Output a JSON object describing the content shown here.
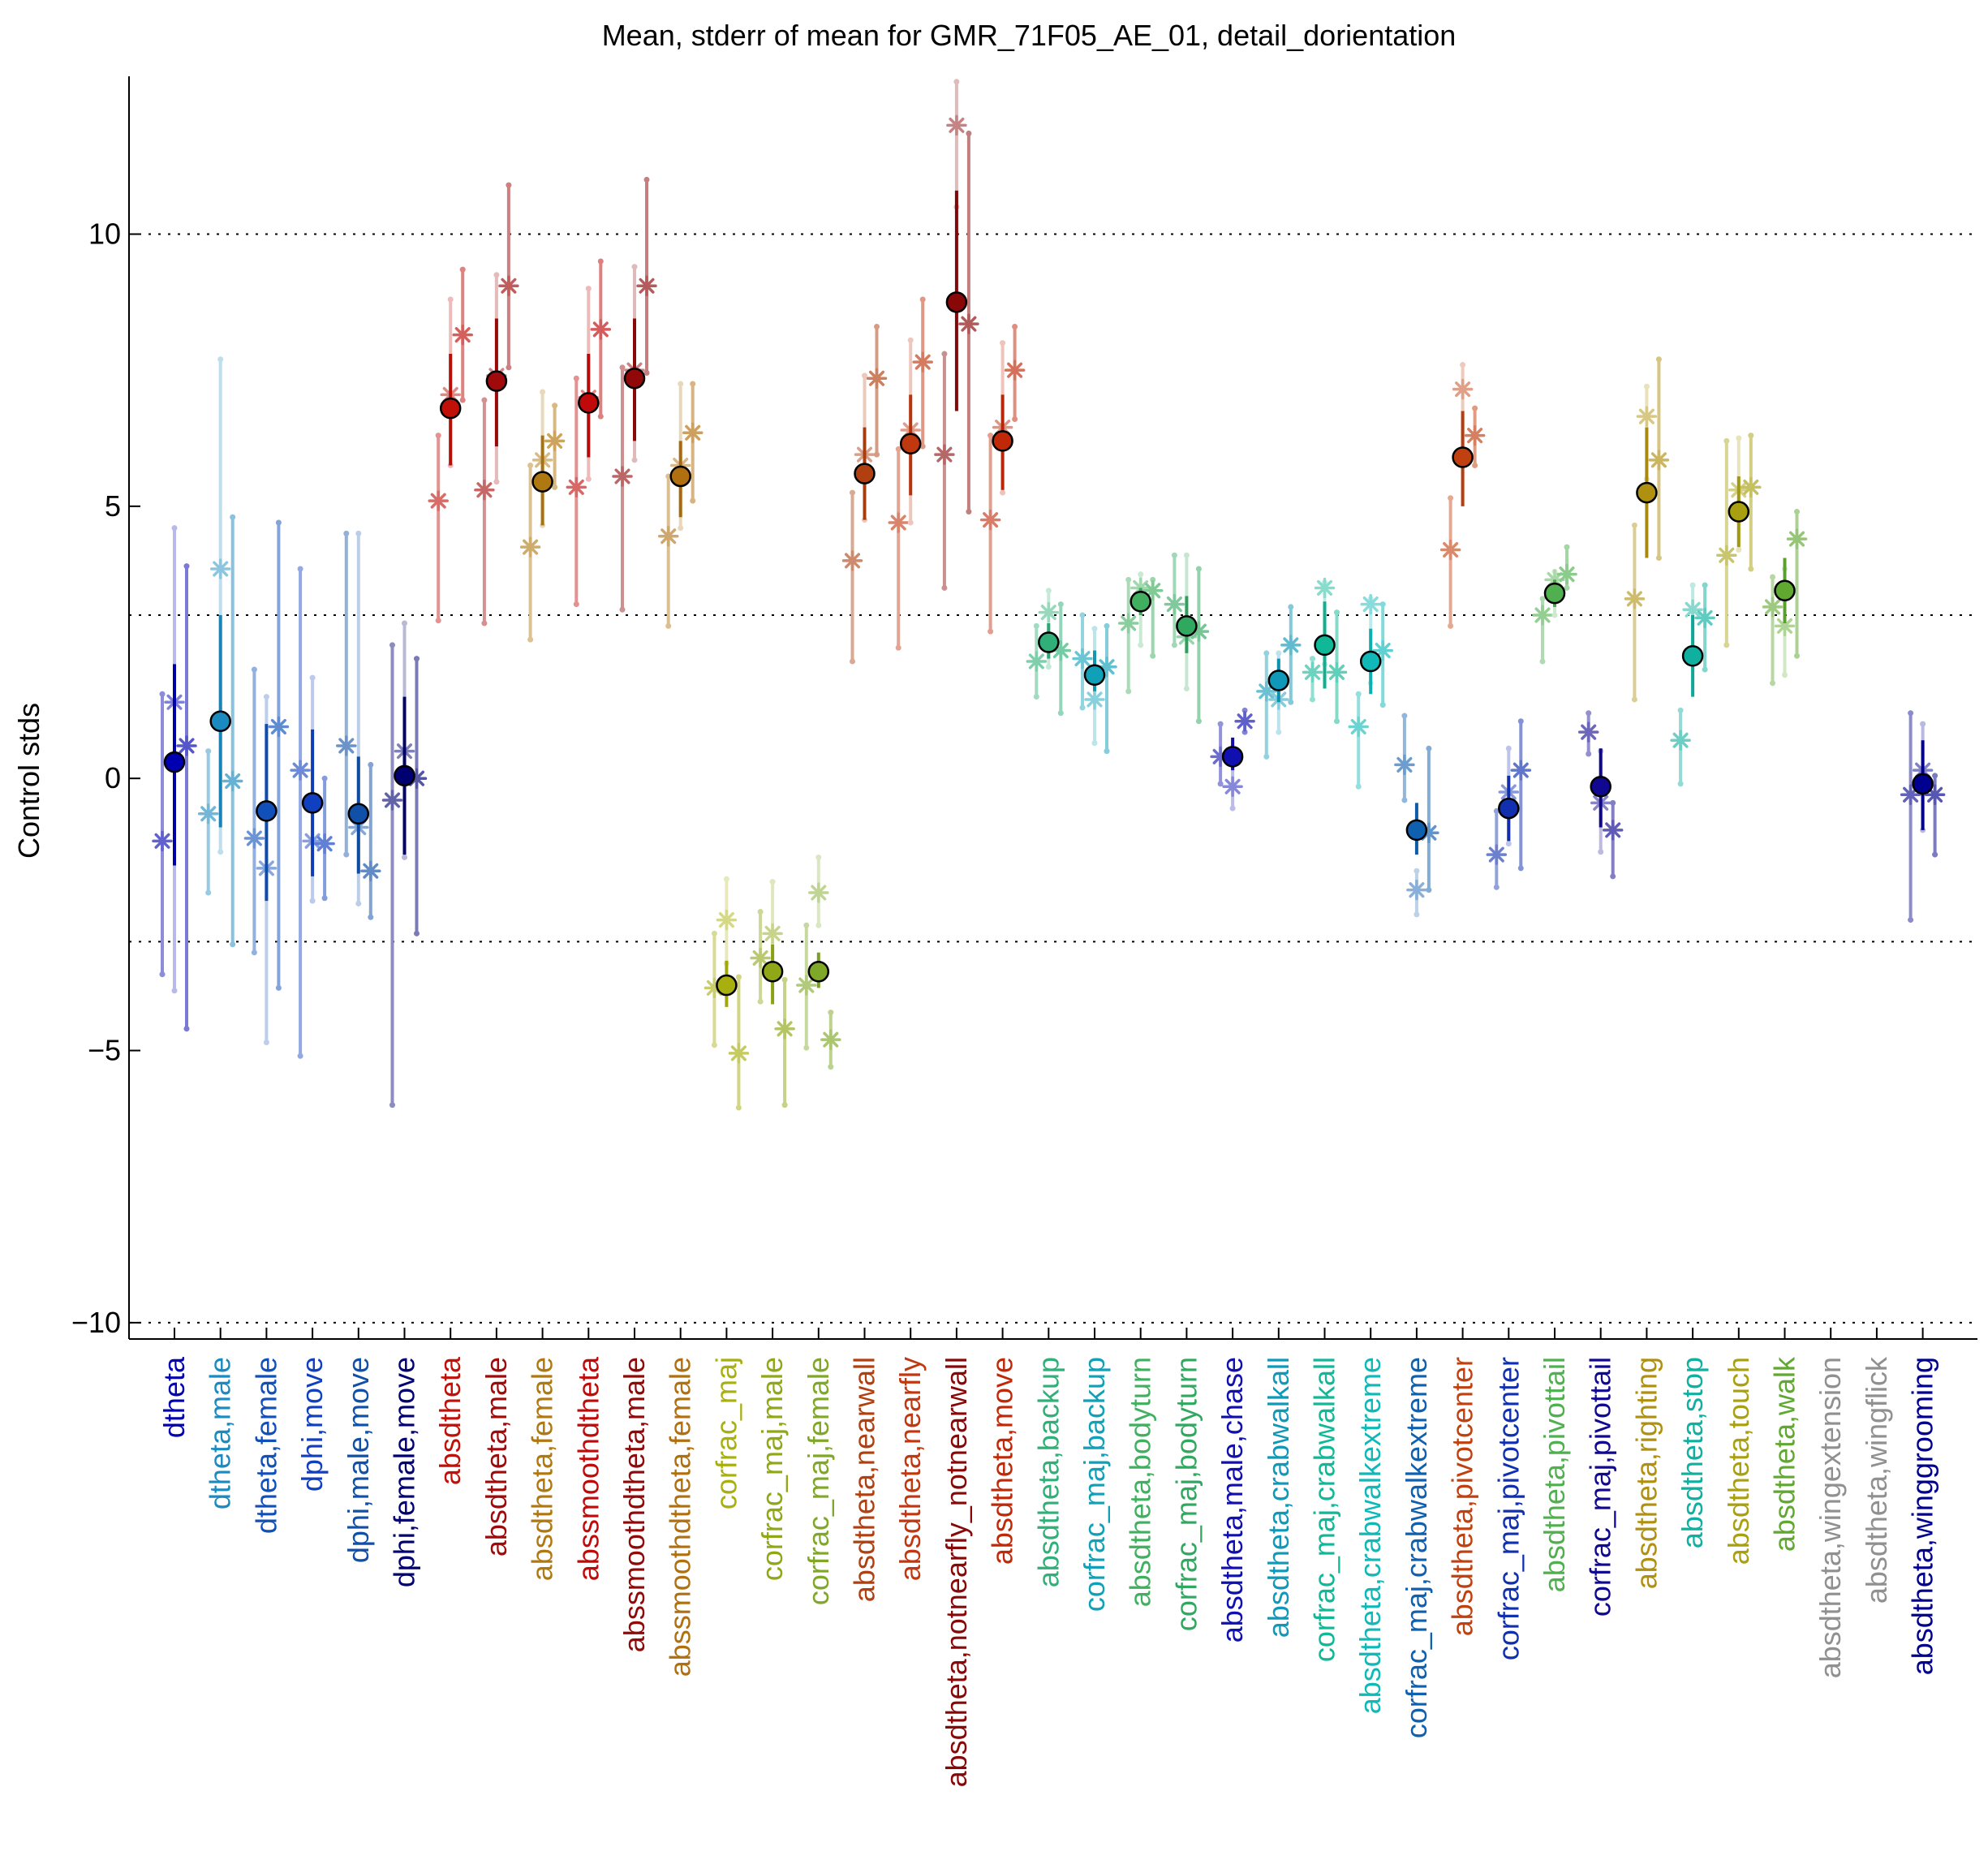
{
  "chart_data": {
    "type": "scatter",
    "title": "Mean, stderr of mean for GMR_71F05_AE_01, detail_dorientation",
    "xlabel": "",
    "ylabel": "Control stds",
    "ylim": [
      -10.3,
      12.9
    ],
    "yticks": [
      -10,
      -5,
      0,
      5,
      10
    ],
    "grid_lines_y": [
      -10,
      -3,
      3,
      10
    ],
    "categories": [
      "dtheta",
      "dtheta,male",
      "dtheta,female",
      "dphi,move",
      "dphi,male,move",
      "dphi,female,move",
      "absdtheta",
      "absdtheta,male",
      "absdtheta,female",
      "abssmoothdtheta",
      "abssmoothdtheta,male",
      "abssmoothdtheta,female",
      "corfrac_maj",
      "corfrac_maj,male",
      "corfrac_maj,female",
      "absdtheta,nearwall",
      "absdtheta,nearfly",
      "absdtheta,notnearfly_notnearwall",
      "absdtheta,move",
      "absdtheta,backup",
      "corfrac_maj,backup",
      "absdtheta,bodyturn",
      "corfrac_maj,bodyturn",
      "absdtheta,male,chase",
      "absdtheta,crabwalkall",
      "corfrac_maj,crabwalkall",
      "absdtheta,crabwalkextreme",
      "corfrac_maj,crabwalkextreme",
      "absdtheta,pivotcenter",
      "corfrac_maj,pivotcenter",
      "absdtheta,pivottail",
      "corfrac_maj,pivottail",
      "absdtheta,righting",
      "absdtheta,stop",
      "absdtheta,touch",
      "absdtheta,walk",
      "absdtheta,wingextension",
      "absdtheta,wingflick",
      "absdtheta,winggrooming"
    ],
    "category_colors": [
      "#0000b0",
      "#1a8ac0",
      "#1050b8",
      "#1040c0",
      "#1050a8",
      "#000070",
      "#c01008",
      "#a00a0a",
      "#b07810",
      "#c00a0a",
      "#900808",
      "#b07010",
      "#a8b010",
      "#90a818",
      "#80a828",
      "#b04010",
      "#c03810",
      "#880808",
      "#c02808",
      "#30b078",
      "#10a0b8",
      "#40b060",
      "#30a860",
      "#1010b0",
      "#1098b8",
      "#10b898",
      "#10b8b8",
      "#1060b0",
      "#c04010",
      "#1030b0",
      "#50b050",
      "#100890",
      "#b09010",
      "#10b0a0",
      "#a8a010",
      "#60a830",
      "#909090",
      "#909090",
      "#000090"
    ],
    "series": [
      {
        "name": "",
        "values": [
          0.3,
          1.05,
          -0.6,
          -0.45,
          -0.65,
          0.05,
          6.8,
          7.3,
          5.45,
          6.9,
          7.35,
          5.55,
          -3.8,
          -3.55,
          -3.55,
          5.6,
          6.15,
          8.75,
          6.2,
          2.5,
          1.9,
          3.25,
          2.8,
          0.4,
          1.8,
          2.45,
          2.15,
          -0.95,
          5.9,
          -0.55,
          3.4,
          -0.15,
          5.25,
          2.25,
          4.9,
          3.45,
          null,
          null,
          -0.1
        ],
        "err_low": [
          -1.6,
          -0.9,
          -2.25,
          -1.8,
          -1.75,
          -1.4,
          5.75,
          6.1,
          4.65,
          5.9,
          6.2,
          4.8,
          -4.2,
          -4.15,
          -3.85,
          4.75,
          5.2,
          6.75,
          5.3,
          2.2,
          1.6,
          3.0,
          2.3,
          0.15,
          1.4,
          1.65,
          1.55,
          -1.4,
          5.0,
          -1.15,
          3.15,
          -0.9,
          4.05,
          1.5,
          4.25,
          2.85,
          null,
          null,
          -0.95
        ],
        "err_high": [
          2.1,
          3.0,
          1.0,
          0.9,
          0.4,
          1.5,
          7.8,
          8.45,
          6.3,
          7.8,
          8.45,
          6.2,
          -3.35,
          -3.05,
          -3.2,
          6.45,
          7.05,
          10.8,
          7.05,
          2.85,
          2.35,
          3.5,
          3.35,
          0.75,
          2.2,
          3.25,
          2.75,
          -0.45,
          6.75,
          0.05,
          3.65,
          0.55,
          6.45,
          3.0,
          5.55,
          4.05,
          null,
          null,
          0.7
        ]
      },
      {
        "name": "",
        "values": [
          -1.15,
          -0.65,
          -1.1,
          0.15,
          0.6,
          -0.4,
          5.1,
          5.3,
          4.25,
          5.35,
          5.55,
          4.45,
          -3.85,
          -3.3,
          -3.8,
          4.0,
          4.7,
          5.95,
          4.75,
          2.15,
          2.2,
          2.85,
          3.2,
          0.4,
          1.6,
          1.95,
          0.95,
          0.25,
          4.2,
          -1.4,
          3.0,
          0.85,
          3.3,
          0.7,
          4.1,
          3.15,
          null,
          null,
          -0.3
        ],
        "err_low": [
          -3.6,
          -2.1,
          -3.2,
          -5.1,
          -1.4,
          -6.0,
          2.9,
          2.85,
          2.55,
          3.2,
          3.1,
          2.8,
          -4.9,
          -4.1,
          -4.95,
          2.15,
          2.4,
          3.5,
          2.7,
          1.5,
          1.3,
          1.6,
          2.45,
          -0.1,
          0.4,
          1.45,
          -0.15,
          -0.4,
          2.8,
          -2.0,
          2.15,
          0.45,
          1.45,
          -0.1,
          2.45,
          1.75,
          null,
          null,
          -2.6
        ],
        "err_high": [
          1.55,
          0.5,
          2.0,
          3.85,
          4.5,
          2.45,
          6.3,
          6.95,
          5.75,
          7.35,
          7.55,
          5.55,
          -2.85,
          -2.45,
          -2.7,
          5.25,
          6.05,
          7.8,
          6.3,
          2.8,
          3.0,
          3.65,
          4.1,
          1.0,
          2.3,
          2.2,
          1.55,
          1.15,
          5.15,
          -0.6,
          3.3,
          1.2,
          4.65,
          1.25,
          6.2,
          3.7,
          null,
          null,
          1.2
        ]
      },
      {
        "name": "",
        "values": [
          1.4,
          3.85,
          -1.65,
          -1.15,
          -0.9,
          0.5,
          7.05,
          7.4,
          5.85,
          7.0,
          7.5,
          5.75,
          -2.6,
          -2.85,
          -2.1,
          5.95,
          6.4,
          12.0,
          6.45,
          3.05,
          1.45,
          3.5,
          2.6,
          -0.15,
          1.45,
          3.5,
          3.2,
          -2.05,
          7.15,
          -0.25,
          3.65,
          -0.45,
          6.65,
          3.1,
          5.3,
          2.8,
          null,
          null,
          0.15
        ],
        "err_low": [
          -3.9,
          -1.35,
          -4.85,
          -2.25,
          -2.3,
          -1.45,
          5.75,
          5.45,
          4.65,
          5.5,
          5.85,
          4.6,
          -3.4,
          -3.6,
          -2.7,
          4.75,
          4.7,
          10.5,
          5.25,
          2.05,
          0.65,
          2.45,
          1.65,
          -0.55,
          0.85,
          2.1,
          1.75,
          -2.5,
          5.95,
          -1.2,
          3.0,
          -1.35,
          5.5,
          2.3,
          4.2,
          1.9,
          null,
          null,
          -0.95
        ],
        "err_high": [
          4.6,
          7.7,
          1.5,
          1.85,
          4.5,
          2.85,
          8.8,
          9.25,
          7.1,
          9.0,
          9.4,
          7.25,
          -1.85,
          -1.9,
          -1.45,
          7.4,
          8.05,
          12.8,
          8.0,
          3.45,
          2.75,
          3.75,
          4.1,
          0.25,
          2.3,
          3.6,
          3.3,
          -1.7,
          7.6,
          0.55,
          3.8,
          0.5,
          7.2,
          3.55,
          6.25,
          3.85,
          null,
          null,
          1.0
        ]
      },
      {
        "name": "",
        "values": [
          0.6,
          -0.05,
          0.95,
          -1.2,
          -1.7,
          0.0,
          8.15,
          9.05,
          6.2,
          8.25,
          9.05,
          6.35,
          -5.05,
          -4.6,
          -4.8,
          7.35,
          7.65,
          8.35,
          7.5,
          2.35,
          2.05,
          3.45,
          2.7,
          1.05,
          2.45,
          1.95,
          2.35,
          -1.0,
          6.3,
          0.15,
          3.75,
          -0.95,
          5.85,
          2.95,
          5.35,
          4.4,
          null,
          null,
          -0.3
        ],
        "err_low": [
          -4.6,
          -3.05,
          -3.85,
          -2.2,
          -2.55,
          -2.85,
          6.95,
          7.55,
          5.35,
          6.65,
          7.45,
          5.1,
          -6.05,
          -6.0,
          -5.3,
          5.95,
          6.1,
          4.9,
          6.6,
          1.2,
          0.5,
          2.25,
          1.05,
          0.85,
          1.4,
          1.05,
          1.35,
          -2.05,
          5.75,
          -1.65,
          3.5,
          -1.8,
          4.05,
          2.0,
          3.85,
          2.25,
          null,
          null,
          -1.4
        ],
        "err_high": [
          3.9,
          4.8,
          4.7,
          0.0,
          0.25,
          2.2,
          9.35,
          10.9,
          6.85,
          9.5,
          11.0,
          7.25,
          -3.65,
          -3.7,
          -4.3,
          8.3,
          8.8,
          11.85,
          8.3,
          3.2,
          2.8,
          3.65,
          3.85,
          1.25,
          3.15,
          3.05,
          3.2,
          0.55,
          6.8,
          1.05,
          4.25,
          -0.45,
          7.7,
          3.55,
          6.3,
          4.9,
          null,
          null,
          0.05
        ]
      }
    ]
  }
}
